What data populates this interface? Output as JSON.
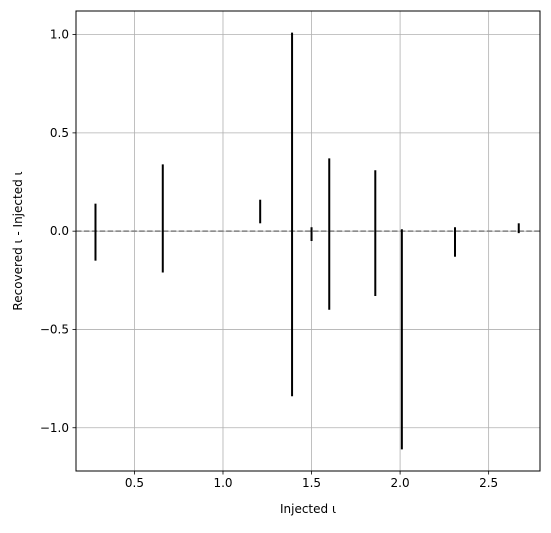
{
  "chart_data": {
    "type": "errorbar",
    "title": "",
    "xlabel": "Injected ι",
    "ylabel": "Recovered ι - Injected ι",
    "xlim": [
      0.17,
      2.79
    ],
    "ylim": [
      -1.22,
      1.12
    ],
    "xticks": [
      0.5,
      1.0,
      1.5,
      2.0,
      2.5
    ],
    "xtick_labels": [
      "0.5",
      "1.0",
      "1.5",
      "2.0",
      "2.5"
    ],
    "yticks": [
      -1.0,
      -0.5,
      0.0,
      0.5,
      1.0
    ],
    "ytick_labels": [
      "−1.0",
      "−0.5",
      "0.0",
      "0.5",
      "1.0"
    ],
    "grid": true,
    "reference_line": {
      "y": 0.0,
      "style": "dashed",
      "color": "#808080"
    },
    "series": [
      {
        "color": "#000000",
        "points": [
          {
            "x": 0.28,
            "lower": -0.15,
            "upper": 0.14
          },
          {
            "x": 0.66,
            "lower": -0.21,
            "upper": 0.34
          },
          {
            "x": 1.21,
            "lower": 0.04,
            "upper": 0.16
          },
          {
            "x": 1.39,
            "lower": -0.84,
            "upper": 1.01
          },
          {
            "x": 1.5,
            "lower": -0.05,
            "upper": 0.02
          },
          {
            "x": 1.6,
            "lower": -0.4,
            "upper": 0.37
          },
          {
            "x": 1.86,
            "lower": -0.33,
            "upper": 0.31
          },
          {
            "x": 2.01,
            "lower": -1.11,
            "upper": 0.01
          },
          {
            "x": 2.31,
            "lower": -0.13,
            "upper": 0.02
          },
          {
            "x": 2.67,
            "lower": -0.01,
            "upper": 0.04
          }
        ]
      }
    ]
  }
}
